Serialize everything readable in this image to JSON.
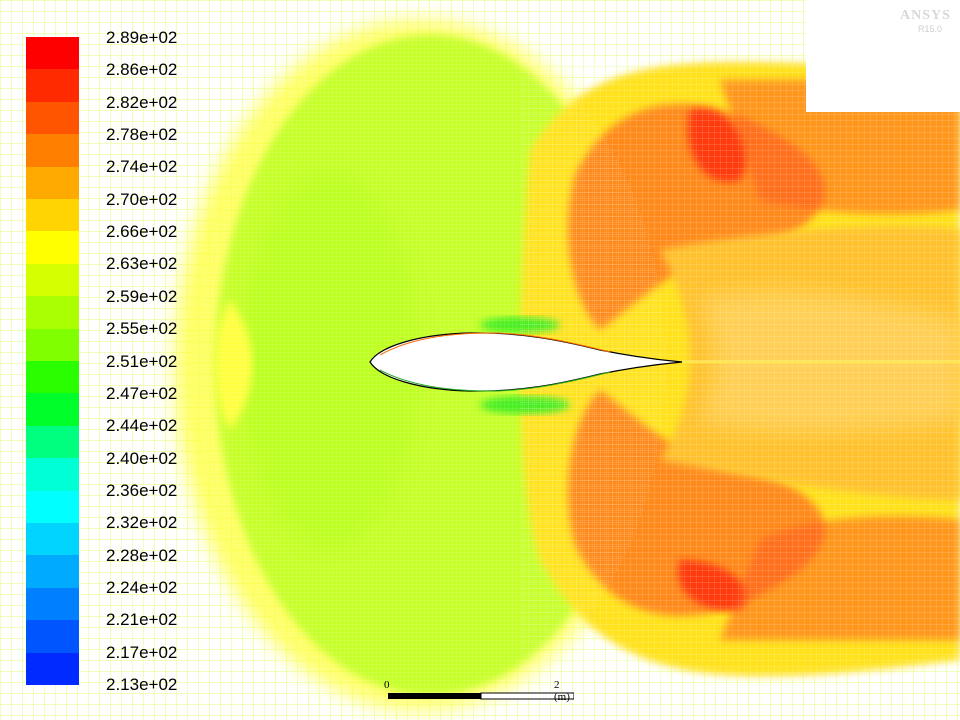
{
  "colormap": {
    "labels": [
      "2.89e+02",
      "2.86e+02",
      "2.82e+02",
      "2.78e+02",
      "2.74e+02",
      "2.70e+02",
      "2.66e+02",
      "2.63e+02",
      "2.59e+02",
      "2.55e+02",
      "2.51e+02",
      "2.47e+02",
      "2.44e+02",
      "2.40e+02",
      "2.36e+02",
      "2.32e+02",
      "2.28e+02",
      "2.24e+02",
      "2.21e+02",
      "2.17e+02",
      "2.13e+02"
    ],
    "colors": [
      "#ff0000",
      "#ff2a00",
      "#ff5500",
      "#ff7f00",
      "#ffaa00",
      "#ffd400",
      "#ffff00",
      "#d4ff00",
      "#aaff00",
      "#7fff00",
      "#2aff00",
      "#00ff2a",
      "#00ff7f",
      "#00ffd4",
      "#00ffff",
      "#00d4ff",
      "#00aaff",
      "#0080ff",
      "#0055ff",
      "#002aff"
    ]
  },
  "watermark": {
    "title": "ANSYS",
    "subtitle": "R15.0"
  },
  "scale_bar": {
    "start": "0",
    "end": "2 (m)"
  }
}
